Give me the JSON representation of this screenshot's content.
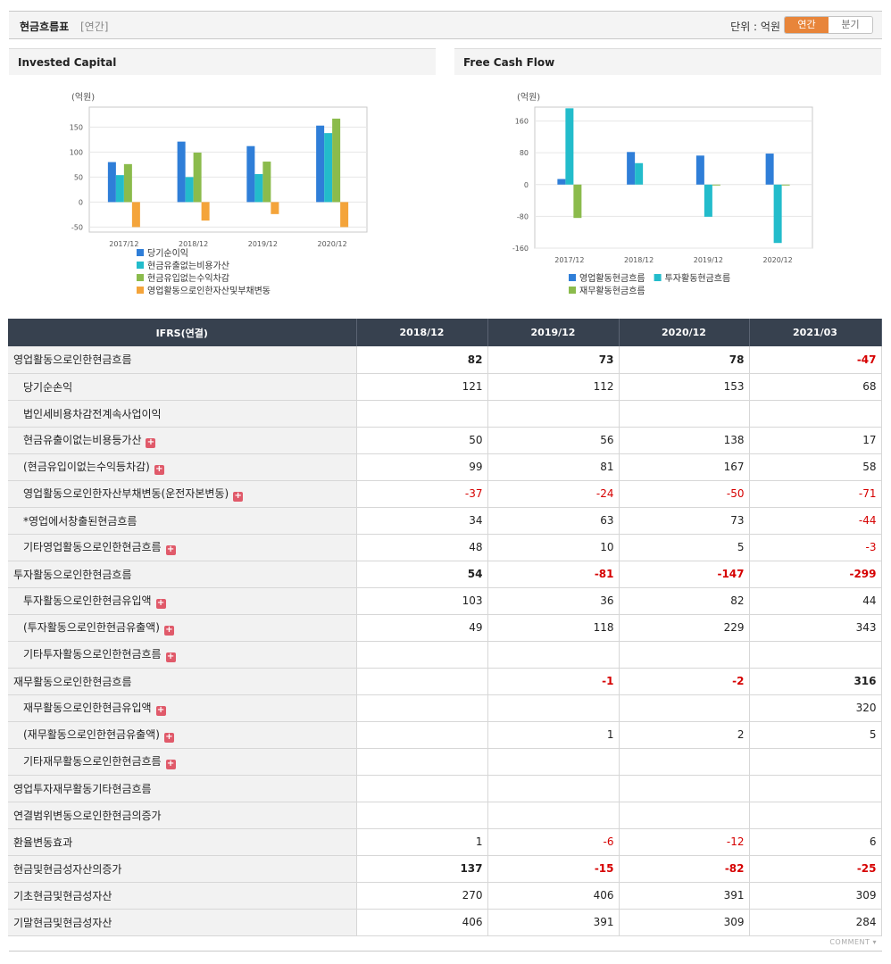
{
  "header": {
    "title": "현금흐름표",
    "subtitle": "[연간]",
    "unit": "단위 : 억원",
    "tabs": [
      "연간",
      "분기"
    ],
    "active_tab": 0
  },
  "charts": {
    "invested_capital": {
      "panel_title": "Invested Capital"
    },
    "free_cash_flow": {
      "panel_title": "Free Cash Flow"
    }
  },
  "chart_data": [
    {
      "type": "bar",
      "title": "Invested Capital",
      "ylabel": "(억원)",
      "categories": [
        "2017/12",
        "2018/12",
        "2019/12",
        "2020/12"
      ],
      "ylim": [
        -60,
        190
      ],
      "yticks": [
        150,
        100,
        50,
        0,
        -50
      ],
      "grid": true,
      "legend": "bottom",
      "series": [
        {
          "name": "당기순이익",
          "color": "#2f7ed8",
          "values": [
            80,
            121,
            112,
            153
          ]
        },
        {
          "name": "현금유출없는비용가산",
          "color": "#23bccb",
          "values": [
            54,
            50,
            56,
            138
          ]
        },
        {
          "name": "현금유입없는수익차감",
          "color": "#8bbb4c",
          "values": [
            76,
            99,
            81,
            167
          ]
        },
        {
          "name": "영업활동으로인한자산및부채변동",
          "color": "#f4a43a",
          "values": [
            -50,
            -37,
            -24,
            -50
          ]
        }
      ]
    },
    {
      "type": "bar",
      "title": "Free Cash Flow",
      "ylabel": "(억원)",
      "categories": [
        "2017/12",
        "2018/12",
        "2019/12",
        "2020/12"
      ],
      "ylim": [
        -160,
        195
      ],
      "yticks": [
        160,
        80,
        0,
        -80,
        -160
      ],
      "grid": true,
      "legend": "bottom",
      "series": [
        {
          "name": "영업활동현금흐름",
          "color": "#2f7ed8",
          "values": [
            14,
            82,
            73,
            78
          ]
        },
        {
          "name": "투자활동현금흐름",
          "color": "#23bccb",
          "values": [
            192,
            54,
            -81,
            -147
          ]
        },
        {
          "name": "재무활동현금흐름",
          "color": "#8bbb4c",
          "values": [
            -84,
            null,
            -1,
            -2
          ]
        }
      ]
    }
  ],
  "table": {
    "header_label": "IFRS(연결)",
    "columns": [
      "2018/12",
      "2019/12",
      "2020/12",
      "2021/03"
    ],
    "rows": [
      {
        "label": "영업활동으로인한현금흐름",
        "level": 0,
        "bold": true,
        "plus": false,
        "values": [
          "82",
          "73",
          "78",
          "-47"
        ]
      },
      {
        "label": "당기순손익",
        "level": 1,
        "bold": false,
        "plus": false,
        "values": [
          "121",
          "112",
          "153",
          "68"
        ]
      },
      {
        "label": "법인세비용차감전계속사업이익",
        "level": 1,
        "bold": false,
        "plus": false,
        "values": [
          "",
          "",
          "",
          ""
        ]
      },
      {
        "label": "현금유출이없는비용등가산",
        "level": 1,
        "bold": false,
        "plus": true,
        "values": [
          "50",
          "56",
          "138",
          "17"
        ]
      },
      {
        "label": "(현금유입이없는수익등차감)",
        "level": 1,
        "bold": false,
        "plus": true,
        "values": [
          "99",
          "81",
          "167",
          "58"
        ]
      },
      {
        "label": "영업활동으로인한자산부채변동(운전자본변동)",
        "level": 1,
        "bold": false,
        "plus": true,
        "values": [
          "-37",
          "-24",
          "-50",
          "-71"
        ]
      },
      {
        "label": "*영업에서창출된현금흐름",
        "level": 1,
        "bold": false,
        "plus": false,
        "values": [
          "34",
          "63",
          "73",
          "-44"
        ]
      },
      {
        "label": "기타영업활동으로인한현금흐름",
        "level": 1,
        "bold": false,
        "plus": true,
        "values": [
          "48",
          "10",
          "5",
          "-3"
        ]
      },
      {
        "label": "투자활동으로인한현금흐름",
        "level": 0,
        "bold": true,
        "plus": false,
        "values": [
          "54",
          "-81",
          "-147",
          "-299"
        ]
      },
      {
        "label": "투자활동으로인한현금유입액",
        "level": 1,
        "bold": false,
        "plus": true,
        "values": [
          "103",
          "36",
          "82",
          "44"
        ]
      },
      {
        "label": "(투자활동으로인한현금유출액)",
        "level": 1,
        "bold": false,
        "plus": true,
        "values": [
          "49",
          "118",
          "229",
          "343"
        ]
      },
      {
        "label": "기타투자활동으로인한현금흐름",
        "level": 1,
        "bold": false,
        "plus": true,
        "values": [
          "",
          "",
          "",
          ""
        ]
      },
      {
        "label": "재무활동으로인한현금흐름",
        "level": 0,
        "bold": true,
        "plus": false,
        "values": [
          "",
          "-1",
          "-2",
          "316"
        ]
      },
      {
        "label": "재무활동으로인한현금유입액",
        "level": 1,
        "bold": false,
        "plus": true,
        "values": [
          "",
          "",
          "",
          "320"
        ]
      },
      {
        "label": "(재무활동으로인한현금유출액)",
        "level": 1,
        "bold": false,
        "plus": true,
        "values": [
          "",
          "1",
          "2",
          "5"
        ]
      },
      {
        "label": "기타재무활동으로인한현금흐름",
        "level": 1,
        "bold": false,
        "plus": true,
        "values": [
          "",
          "",
          "",
          ""
        ]
      },
      {
        "label": "영업투자재무활동기타현금흐름",
        "level": 0,
        "bold": false,
        "plus": false,
        "values": [
          "",
          "",
          "",
          ""
        ]
      },
      {
        "label": "연결범위변동으로인한현금의증가",
        "level": 0,
        "bold": false,
        "plus": false,
        "values": [
          "",
          "",
          "",
          ""
        ]
      },
      {
        "label": "환율변동효과",
        "level": 0,
        "bold": false,
        "plus": false,
        "values": [
          "1",
          "-6",
          "-12",
          "6"
        ]
      },
      {
        "label": "현금및현금성자산의증가",
        "level": 0,
        "bold": true,
        "plus": false,
        "values": [
          "137",
          "-15",
          "-82",
          "-25"
        ]
      },
      {
        "label": "기초현금및현금성자산",
        "level": 0,
        "bold": false,
        "plus": false,
        "values": [
          "270",
          "406",
          "391",
          "309"
        ]
      },
      {
        "label": "기말현금및현금성자산",
        "level": 0,
        "bold": false,
        "plus": false,
        "values": [
          "406",
          "391",
          "309",
          "284"
        ]
      }
    ]
  },
  "footer": {
    "comment": "COMMENT"
  }
}
